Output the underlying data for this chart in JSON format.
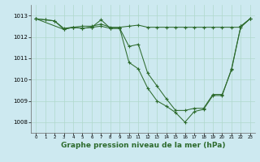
{
  "background_color": "#cde9f0",
  "plot_bg_color": "#cde9f0",
  "grid_color": "#b0d8cc",
  "line_color": "#2d6b2d",
  "title": "Graphe pression niveau de la mer (hPa)",
  "title_fontsize": 6.5,
  "ylim": [
    1007.5,
    1013.5
  ],
  "yticks": [
    1008,
    1009,
    1010,
    1011,
    1012,
    1013
  ],
  "xlim": [
    -0.5,
    23.5
  ],
  "xticks": [
    0,
    1,
    2,
    3,
    4,
    5,
    6,
    7,
    8,
    9,
    10,
    11,
    12,
    13,
    14,
    15,
    16,
    17,
    18,
    19,
    20,
    21,
    22,
    23
  ],
  "series1_x": [
    0,
    1,
    2,
    3,
    4,
    5,
    6,
    7,
    8,
    9,
    10,
    11,
    12,
    13,
    14,
    15,
    16,
    17,
    18,
    19,
    20,
    21,
    22,
    23
  ],
  "series1_y": [
    1012.85,
    1012.8,
    1012.75,
    1012.4,
    1012.45,
    1012.5,
    1012.5,
    1012.6,
    1012.45,
    1012.45,
    1012.5,
    1012.55,
    1012.45,
    1012.45,
    1012.45,
    1012.45,
    1012.45,
    1012.45,
    1012.45,
    1012.45,
    1012.45,
    1012.45,
    1012.45,
    1012.85
  ],
  "series2_x": [
    0,
    1,
    2,
    3,
    4,
    5,
    6,
    7,
    8,
    9,
    10,
    11,
    12,
    13,
    14,
    15,
    16,
    17,
    18,
    19,
    20,
    21,
    22,
    23
  ],
  "series2_y": [
    1012.85,
    1012.8,
    1012.75,
    1012.35,
    1012.45,
    1012.4,
    1012.45,
    1012.5,
    1012.4,
    1012.4,
    1011.55,
    1011.65,
    1010.3,
    1009.7,
    1009.1,
    1008.55,
    1008.55,
    1008.65,
    1008.65,
    1009.3,
    1009.3,
    1010.45,
    1012.5,
    1012.85
  ],
  "series3_x": [
    0,
    3,
    4,
    5,
    6,
    7,
    8,
    9,
    10,
    11,
    12,
    13,
    14,
    15,
    16,
    17,
    18,
    19,
    20,
    21,
    22,
    23
  ],
  "series3_y": [
    1012.85,
    1012.35,
    1012.45,
    1012.4,
    1012.45,
    1012.8,
    1012.4,
    1012.4,
    1010.8,
    1010.5,
    1009.6,
    1009.0,
    1008.75,
    1008.45,
    1008.0,
    1008.5,
    1008.6,
    1009.25,
    1009.25,
    1010.5,
    1012.5,
    1012.85
  ]
}
